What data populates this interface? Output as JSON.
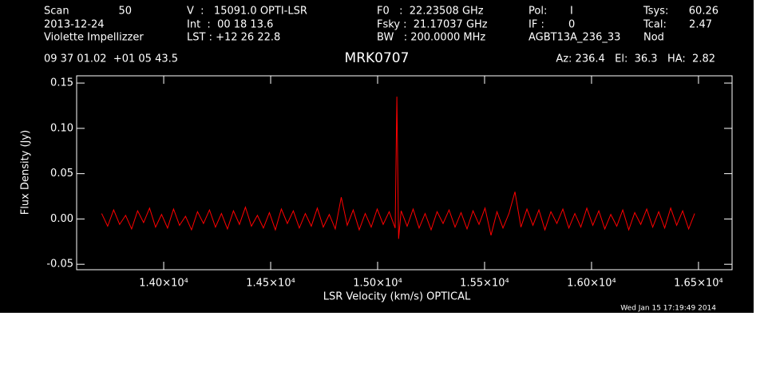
{
  "header": {
    "scan_label": "Scan",
    "scan": "50",
    "date": "2013-12-24",
    "observer": "Violette Impellizzer",
    "velocity": "V  :   15091.0 OPTI-LSR",
    "int": "Int  :  00 18 13.6",
    "lst": "LST : +12 26 22.8",
    "f0": "F0   :  22.23508 GHz",
    "fsky": "Fsky :  21.17037 GHz",
    "bw": "BW   : 200.0000 MHz",
    "pol_label": "Pol:",
    "pol": "I",
    "if_label": "IF :",
    "if": "0",
    "project": "AGBT13A_236_33",
    "tsys_label": "Tsys:",
    "tsys": "60.26",
    "tcal_label": "Tcal:",
    "tcal": "2.47",
    "mode": "Nod",
    "coords": "09 37 01.02  +01 05 43.5",
    "azelha": "Az: 236.4   El:  36.3   HA:  2.82",
    "timestamp": "Wed Jan 15 17:19:49 2014"
  },
  "chart_data": {
    "type": "line",
    "title": "MRK0707",
    "x_label": "LSR Velocity (km/s) OPTICAL",
    "y_label": "Flux Density (Jy)",
    "color": "#ff0000",
    "xlim": [
      13593,
      16657
    ],
    "ylim": [
      -0.056,
      0.158
    ],
    "xticks": [
      {
        "value": 14000,
        "label": "1.40×10⁴"
      },
      {
        "value": 14500,
        "label": "1.45×10⁴"
      },
      {
        "value": 15000,
        "label": "1.50×10⁴"
      },
      {
        "value": 15500,
        "label": "1.55×10⁴"
      },
      {
        "value": 16000,
        "label": "1.60×10⁴"
      },
      {
        "value": 16500,
        "label": "1.65×10⁴"
      }
    ],
    "yticks": [
      -0.05,
      {
        "value": 0,
        "label": "0.00"
      },
      0.05,
      {
        "value": 0.1,
        "label": "0.10"
      },
      0.15
    ],
    "x": [
      13710,
      13738,
      13766,
      13794,
      13822,
      13850,
      13878,
      13906,
      13934,
      13962,
      13990,
      14018,
      14046,
      14074,
      14102,
      14130,
      14158,
      14186,
      14214,
      14242,
      14270,
      14298,
      14326,
      14354,
      14382,
      14410,
      14438,
      14466,
      14494,
      14522,
      14550,
      14578,
      14606,
      14634,
      14662,
      14690,
      14718,
      14746,
      14774,
      14802,
      14830,
      14858,
      14886,
      14914,
      14942,
      14970,
      14998,
      15026,
      15054,
      15082,
      15090,
      15098,
      15110,
      15138,
      15166,
      15194,
      15222,
      15250,
      15278,
      15306,
      15334,
      15362,
      15390,
      15418,
      15446,
      15474,
      15502,
      15530,
      15558,
      15586,
      15614,
      15642,
      15670,
      15698,
      15726,
      15754,
      15782,
      15810,
      15838,
      15866,
      15894,
      15922,
      15950,
      15978,
      16006,
      16034,
      16062,
      16090,
      16118,
      16146,
      16174,
      16202,
      16230,
      16258,
      16286,
      16314,
      16342,
      16370,
      16398,
      16426,
      16454,
      16482
    ],
    "values": [
      0.006,
      -0.008,
      0.01,
      -0.006,
      0.004,
      -0.011,
      0.009,
      -0.004,
      0.012,
      -0.009,
      0.005,
      -0.01,
      0.011,
      -0.007,
      0.003,
      -0.012,
      0.008,
      -0.005,
      0.01,
      -0.009,
      0.006,
      -0.011,
      0.009,
      -0.006,
      0.013,
      -0.008,
      0.004,
      -0.01,
      0.007,
      -0.012,
      0.011,
      -0.005,
      0.009,
      -0.01,
      0.006,
      -0.008,
      0.012,
      -0.009,
      0.005,
      -0.011,
      0.024,
      -0.007,
      0.01,
      -0.012,
      0.006,
      -0.009,
      0.011,
      -0.006,
      0.008,
      -0.01,
      0.135,
      -0.022,
      0.009,
      -0.008,
      0.011,
      -0.01,
      0.006,
      -0.012,
      0.008,
      -0.005,
      0.01,
      -0.009,
      0.007,
      -0.011,
      0.009,
      -0.006,
      0.012,
      -0.018,
      0.008,
      -0.01,
      0.006,
      0.03,
      -0.009,
      0.011,
      -0.007,
      0.01,
      -0.012,
      0.008,
      -0.005,
      0.011,
      -0.01,
      0.006,
      -0.009,
      0.012,
      -0.007,
      0.009,
      -0.011,
      0.005,
      -0.008,
      0.01,
      -0.012,
      0.007,
      -0.006,
      0.011,
      -0.009,
      0.008,
      -0.01,
      0.012,
      -0.007,
      0.009,
      -0.011,
      0.006
    ]
  }
}
